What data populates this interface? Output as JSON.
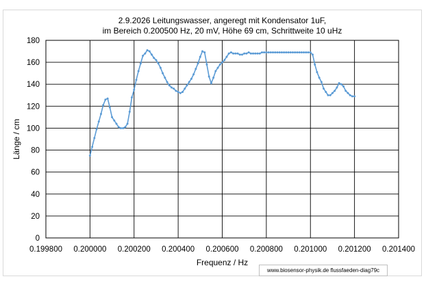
{
  "chart_data": {
    "type": "line",
    "title_lines": [
      "2.9.2026 Leitungswasser, angeregt mit Kondensator 1uF,",
      "im Bereich 0.200500 Hz, 20 mV,   Höhe 69 cm, Schrittweite 10 uHz"
    ],
    "xlabel": "Frequenz / Hz",
    "ylabel": "Länge / cm",
    "xlim": [
      0.1998,
      0.2014
    ],
    "ylim": [
      0,
      180
    ],
    "x_ticks": [
      0.1998,
      0.2,
      0.2002,
      0.2004,
      0.2006,
      0.2008,
      0.201,
      0.2012,
      0.2014
    ],
    "x_tick_labels": [
      "0.199800",
      "0.200000",
      "0.200200",
      "0.200400",
      "0.200600",
      "0.200800",
      "0.201000",
      "0.201200",
      "0.201400"
    ],
    "y_ticks": [
      0,
      20,
      40,
      60,
      80,
      100,
      120,
      140,
      160,
      180
    ],
    "y_tick_labels": [
      "0",
      "20",
      "40",
      "60",
      "80",
      "100",
      "120",
      "140",
      "160",
      "180"
    ],
    "grid": true,
    "line_color": "#5b9bd5",
    "series": [
      {
        "x": [
          0.2,
          0.20001,
          0.20002,
          0.20003,
          0.20004,
          0.20005,
          0.20006,
          0.20007,
          0.20008,
          0.20009,
          0.2001,
          0.20011,
          0.20012,
          0.20013,
          0.20014,
          0.20015,
          0.20016,
          0.20017,
          0.20018,
          0.20019,
          0.2002,
          0.20021,
          0.20022,
          0.20023,
          0.20024,
          0.20025,
          0.20026,
          0.20027,
          0.20028,
          0.20029,
          0.2003,
          0.20031,
          0.20032,
          0.20033,
          0.20034,
          0.20035,
          0.20036,
          0.20037,
          0.20038,
          0.20039,
          0.2004,
          0.20041,
          0.20042,
          0.20043,
          0.20044,
          0.20045,
          0.20046,
          0.20047,
          0.20048,
          0.20049,
          0.2005,
          0.20051,
          0.20052,
          0.20053,
          0.20054,
          0.20055,
          0.20056,
          0.20057,
          0.20058,
          0.20059,
          0.2006,
          0.20061,
          0.20062,
          0.20063,
          0.20064,
          0.20065,
          0.20066,
          0.20067,
          0.20068,
          0.20069,
          0.2007,
          0.20071,
          0.20072,
          0.20073,
          0.20074,
          0.20075,
          0.20076,
          0.20077,
          0.20078,
          0.20079,
          0.2008,
          0.20081,
          0.20082,
          0.20083,
          0.20084,
          0.20085,
          0.20086,
          0.20087,
          0.20088,
          0.20089,
          0.2009,
          0.20091,
          0.20092,
          0.20093,
          0.20094,
          0.20095,
          0.20096,
          0.20097,
          0.20098,
          0.20099,
          0.201,
          0.20101,
          0.20102,
          0.20103,
          0.20104,
          0.20105,
          0.20106,
          0.20107,
          0.20108,
          0.20109,
          0.2011,
          0.20111,
          0.20112,
          0.20113,
          0.20114,
          0.20115,
          0.20116,
          0.20117,
          0.20118,
          0.20119,
          0.2012
        ],
        "y": [
          75,
          83,
          91,
          99,
          106,
          113,
          121,
          126,
          127,
          119,
          110,
          107,
          104,
          101,
          100,
          100,
          101,
          104,
          115,
          128,
          135,
          144,
          152,
          159,
          166,
          168,
          171,
          170,
          167,
          164,
          162,
          159,
          155,
          150,
          146,
          142,
          139,
          137,
          136,
          134,
          133,
          132,
          133,
          136,
          139,
          142,
          145,
          149,
          154,
          159,
          165,
          170,
          169,
          158,
          147,
          141,
          146,
          152,
          155,
          158,
          160,
          162,
          165,
          168,
          169,
          168,
          168,
          168,
          167,
          167,
          168,
          168,
          169,
          168,
          168,
          168,
          168,
          168,
          169,
          169,
          169,
          169,
          169,
          169,
          169,
          169,
          169,
          169,
          169,
          169,
          169,
          169,
          169,
          169,
          169,
          169,
          169,
          169,
          169,
          169,
          169,
          167,
          158,
          151,
          146,
          142,
          136,
          133,
          130,
          130,
          132,
          134,
          137,
          141,
          140,
          138,
          134,
          132,
          130,
          129,
          129
        ]
      }
    ]
  },
  "credit": "www.biosensor-physik.de  flussfaeden-diag79c"
}
